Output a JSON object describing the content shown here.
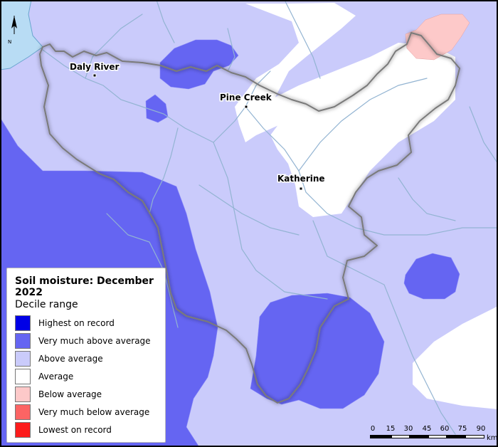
{
  "legend": {
    "title": "Soil moisture: December 2022",
    "subtitle": "Decile range",
    "items": [
      {
        "label": "Highest on record",
        "color": "#0000e6"
      },
      {
        "label": "Very much above average",
        "color": "#6565f2"
      },
      {
        "label": "Above average",
        "color": "#cacbfb"
      },
      {
        "label": "Average",
        "color": "#ffffff"
      },
      {
        "label": "Below average",
        "color": "#fdc9c9"
      },
      {
        "label": "Very much below average",
        "color": "#fc6464"
      },
      {
        "label": "Lowest on record",
        "color": "#fc1c1c"
      }
    ]
  },
  "places": [
    {
      "name": "Daly River"
    },
    {
      "name": "Pine Creek"
    },
    {
      "name": "Katherine"
    }
  ],
  "north_arrow": {
    "label": "N"
  },
  "scale": {
    "ticks": [
      "0",
      "15",
      "30",
      "45",
      "60",
      "75",
      "90"
    ],
    "unit": "km"
  }
}
